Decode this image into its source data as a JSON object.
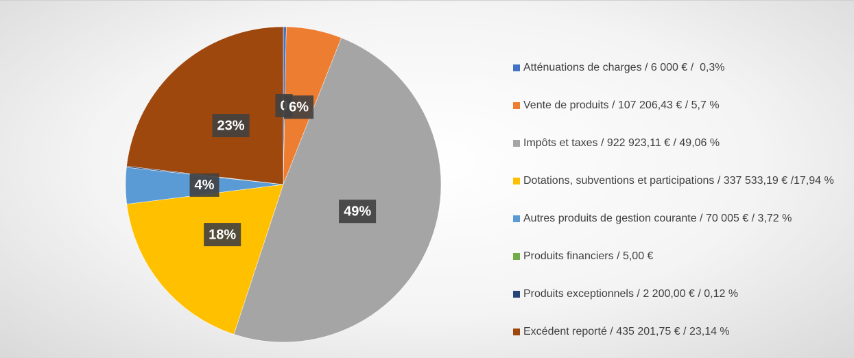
{
  "chart_data": {
    "type": "pie",
    "categories": [
      "Atténuations de charges / 6 000 € /  0,3%",
      "Vente de produits / 107 206,43 € / 5,7 %",
      "Impôts et taxes / 922 923,11 € / 49,06 %",
      "Dotations, subventions et participations / 337 533,19 € /17,94 %",
      "Autres produits de gestion courante / 70 005 € / 3,72 %",
      "Produits financiers / 5,00 €",
      "Produits exceptionnels / 2 200,00 € / 0,12 %",
      "Excédent reporté / 435 201,75 € / 23,14 %"
    ],
    "values": [
      0.3,
      5.7,
      49.06,
      17.94,
      3.72,
      0.0003,
      0.12,
      23.14
    ],
    "value_labels": [
      "0",
      "6%",
      "49%",
      "18%",
      "4%",
      null,
      null,
      "23%"
    ],
    "colors": [
      "#4472c4",
      "#ed7d31",
      "#a5a5a5",
      "#ffc000",
      "#5b9bd5",
      "#70ad47",
      "#264478",
      "#9e480e"
    ],
    "legend": "right"
  }
}
